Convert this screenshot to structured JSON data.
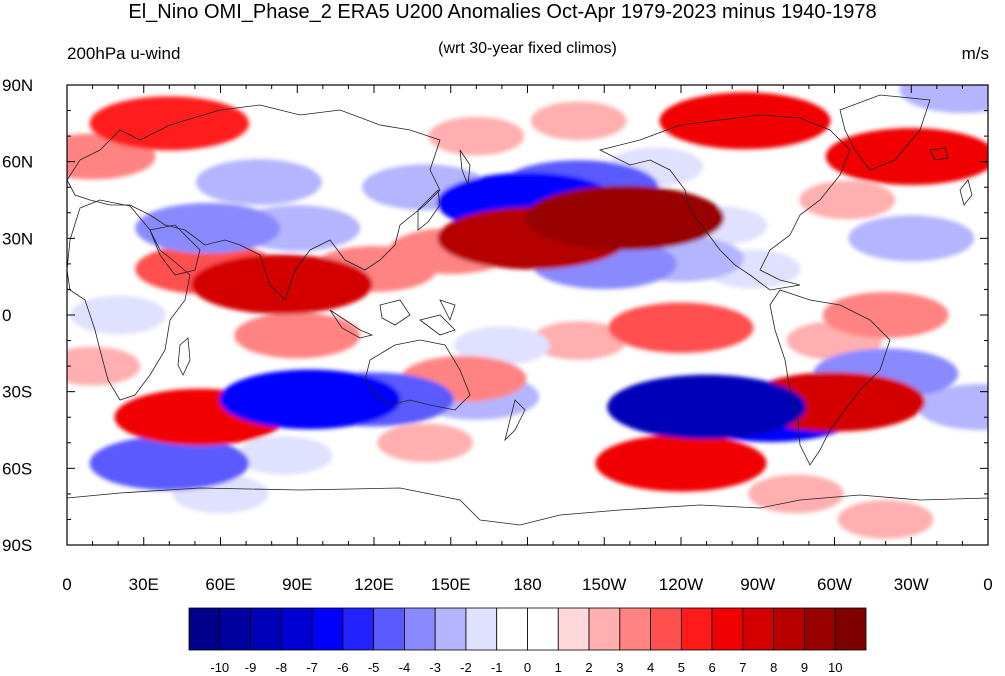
{
  "title": "El_Nino OMI_Phase_2 ERA5 U200 Anomalies Oct-Apr 1979-2023 minus 1940-1978",
  "left_string": "200hPa u-wind",
  "center_string": "(wrt 30-year fixed climos)",
  "right_string": "m/s",
  "map": {
    "projection": "cylindrical-equidistant",
    "lon_range": [
      0,
      360
    ],
    "lat_range": [
      -90,
      90
    ],
    "lat_ticks": [
      "90N",
      "60N",
      "30N",
      "0",
      "30S",
      "60S",
      "90S"
    ],
    "lon_ticks": [
      "0",
      "30E",
      "60E",
      "90E",
      "120E",
      "150E",
      "180",
      "150W",
      "120W",
      "90W",
      "60W",
      "30W",
      "0"
    ],
    "anomaly_centers": [
      {
        "lon": 84,
        "lat": 12,
        "value": 7
      },
      {
        "lon": 55,
        "lat": 18,
        "value": 4
      },
      {
        "lon": 120,
        "lat": 18,
        "value": 3
      },
      {
        "lon": 182,
        "lat": 30,
        "value": 8
      },
      {
        "lon": 218,
        "lat": 38,
        "value": 9
      },
      {
        "lon": 200,
        "lat": 42,
        "value": 4
      },
      {
        "lon": 180,
        "lat": 44,
        "value": -7
      },
      {
        "lon": 200,
        "lat": 50,
        "value": -5
      },
      {
        "lon": 140,
        "lat": 50,
        "value": -3
      },
      {
        "lon": 210,
        "lat": 20,
        "value": -4
      },
      {
        "lon": 240,
        "lat": 22,
        "value": -3
      },
      {
        "lon": 268,
        "lat": 18,
        "value": -2
      },
      {
        "lon": 55,
        "lat": 34,
        "value": -4
      },
      {
        "lon": 90,
        "lat": 34,
        "value": -3
      },
      {
        "lon": 75,
        "lat": 52,
        "value": -3
      },
      {
        "lon": 255,
        "lat": 35,
        "value": -2
      },
      {
        "lon": 330,
        "lat": 30,
        "value": -3
      },
      {
        "lon": 305,
        "lat": 45,
        "value": 2
      },
      {
        "lon": 240,
        "lat": -5,
        "value": 4
      },
      {
        "lon": 320,
        "lat": 0,
        "value": 3
      },
      {
        "lon": 300,
        "lat": -10,
        "value": 2
      },
      {
        "lon": 90,
        "lat": -8,
        "value": 3
      },
      {
        "lon": 95,
        "lat": -33,
        "value": -7
      },
      {
        "lon": 120,
        "lat": -33,
        "value": -5
      },
      {
        "lon": 160,
        "lat": -32,
        "value": -3
      },
      {
        "lon": 250,
        "lat": -36,
        "value": -9
      },
      {
        "lon": 275,
        "lat": -38,
        "value": -7
      },
      {
        "lon": 320,
        "lat": -23,
        "value": -4
      },
      {
        "lon": 357,
        "lat": -36,
        "value": -3
      },
      {
        "lon": 52,
        "lat": -40,
        "value": 6
      },
      {
        "lon": 155,
        "lat": -25,
        "value": 3
      },
      {
        "lon": 300,
        "lat": -34,
        "value": 7
      },
      {
        "lon": 40,
        "lat": -58,
        "value": -5
      },
      {
        "lon": 85,
        "lat": -55,
        "value": -2
      },
      {
        "lon": 240,
        "lat": -58,
        "value": 6
      },
      {
        "lon": 140,
        "lat": -50,
        "value": 2
      },
      {
        "lon": 40,
        "lat": 75,
        "value": 5
      },
      {
        "lon": 265,
        "lat": 76,
        "value": 6
      },
      {
        "lon": 330,
        "lat": 62,
        "value": 6
      },
      {
        "lon": 10,
        "lat": 62,
        "value": 3
      },
      {
        "lon": 160,
        "lat": 70,
        "value": 2
      },
      {
        "lon": 200,
        "lat": 76,
        "value": 2
      },
      {
        "lon": 230,
        "lat": 58,
        "value": -2
      },
      {
        "lon": 350,
        "lat": 88,
        "value": -3
      },
      {
        "lon": 20,
        "lat": 0,
        "value": -2
      },
      {
        "lon": 10,
        "lat": -20,
        "value": 2
      },
      {
        "lon": 200,
        "lat": -10,
        "value": 2
      },
      {
        "lon": 170,
        "lat": -12,
        "value": -2
      },
      {
        "lon": 320,
        "lat": -80,
        "value": 2
      },
      {
        "lon": 285,
        "lat": -70,
        "value": 2
      },
      {
        "lon": 60,
        "lat": -70,
        "value": -2
      },
      {
        "lon": 150,
        "lat": 25,
        "value": 3
      }
    ]
  },
  "colorbar": {
    "labels": [
      "-10",
      "-9",
      "-8",
      "-7",
      "-6",
      "-5",
      "-4",
      "-3",
      "-2",
      "-1",
      "0",
      "1",
      "2",
      "3",
      "4",
      "5",
      "6",
      "7",
      "8",
      "9",
      "10"
    ],
    "colors": [
      "#00008B",
      "#00009F",
      "#0000B9",
      "#0000D5",
      "#0000FF",
      "#2222FF",
      "#5A5AFF",
      "#8A8AFF",
      "#B4B4FF",
      "#E0E0FF",
      "#FFFFFF",
      "#FFFFFF",
      "#FFD9D9",
      "#FFAFAF",
      "#FF8383",
      "#FF4F4F",
      "#FF1A1A",
      "#F00000",
      "#D40000",
      "#B60000",
      "#990000",
      "#7E0000"
    ]
  }
}
